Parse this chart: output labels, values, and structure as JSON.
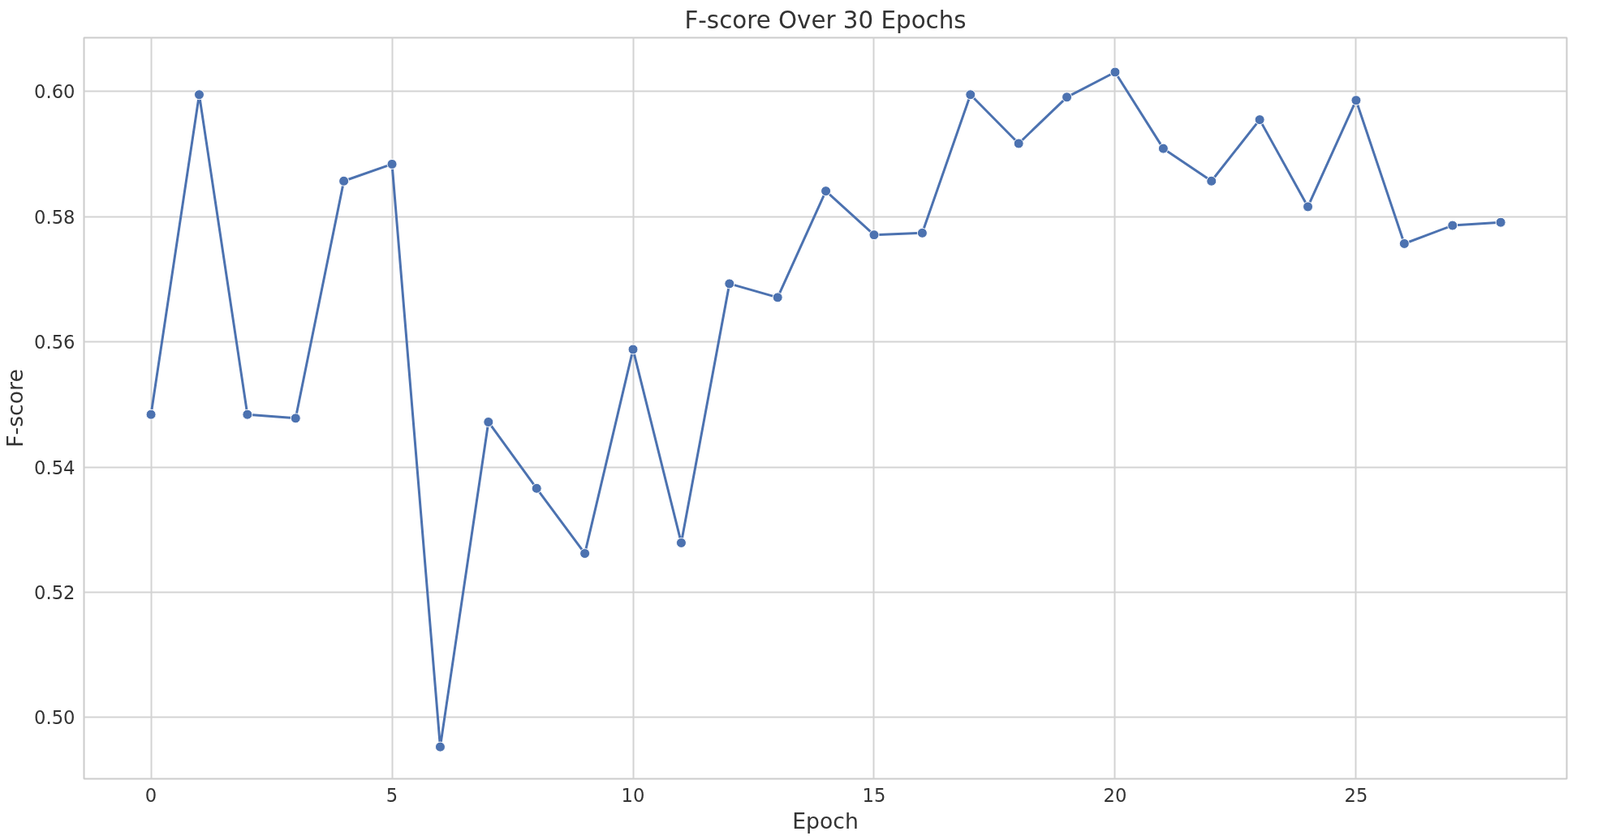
{
  "chart_data": {
    "type": "line",
    "title": "F-score Over 30 Epochs",
    "xlabel": "Epoch",
    "ylabel": "F-score",
    "x": [
      0,
      1,
      2,
      3,
      4,
      5,
      6,
      7,
      8,
      9,
      10,
      11,
      12,
      13,
      14,
      15,
      16,
      17,
      18,
      19,
      20,
      21,
      22,
      23,
      24,
      25,
      26,
      27,
      28
    ],
    "series": [
      {
        "color": "#4c72b0",
        "values": [
          0.5484,
          0.5995,
          0.5484,
          0.5478,
          0.5857,
          0.5884,
          0.4953,
          0.5472,
          0.5366,
          0.5262,
          0.5588,
          0.5279,
          0.5693,
          0.5671,
          0.5841,
          0.5771,
          0.5774,
          0.5995,
          0.5917,
          0.5991,
          0.6031,
          0.5909,
          0.5857,
          0.5955,
          0.5816,
          0.5986,
          0.5757,
          0.5786,
          0.5791
        ]
      }
    ],
    "xlim": [
      -1.39,
      29.37
    ],
    "ylim": [
      0.4902,
      0.6086
    ],
    "xticks": [
      0,
      5,
      10,
      15,
      20,
      25
    ],
    "yticks": [
      {
        "value": 0.5,
        "label": "0.50"
      },
      {
        "value": 0.52,
        "label": "0.52"
      },
      {
        "value": 0.54,
        "label": "0.54"
      },
      {
        "value": 0.56,
        "label": "0.56"
      },
      {
        "value": 0.58,
        "label": "0.58"
      },
      {
        "value": 0.6,
        "label": "0.60"
      }
    ],
    "grid": true,
    "marker": "circle",
    "line_style": "solid"
  }
}
